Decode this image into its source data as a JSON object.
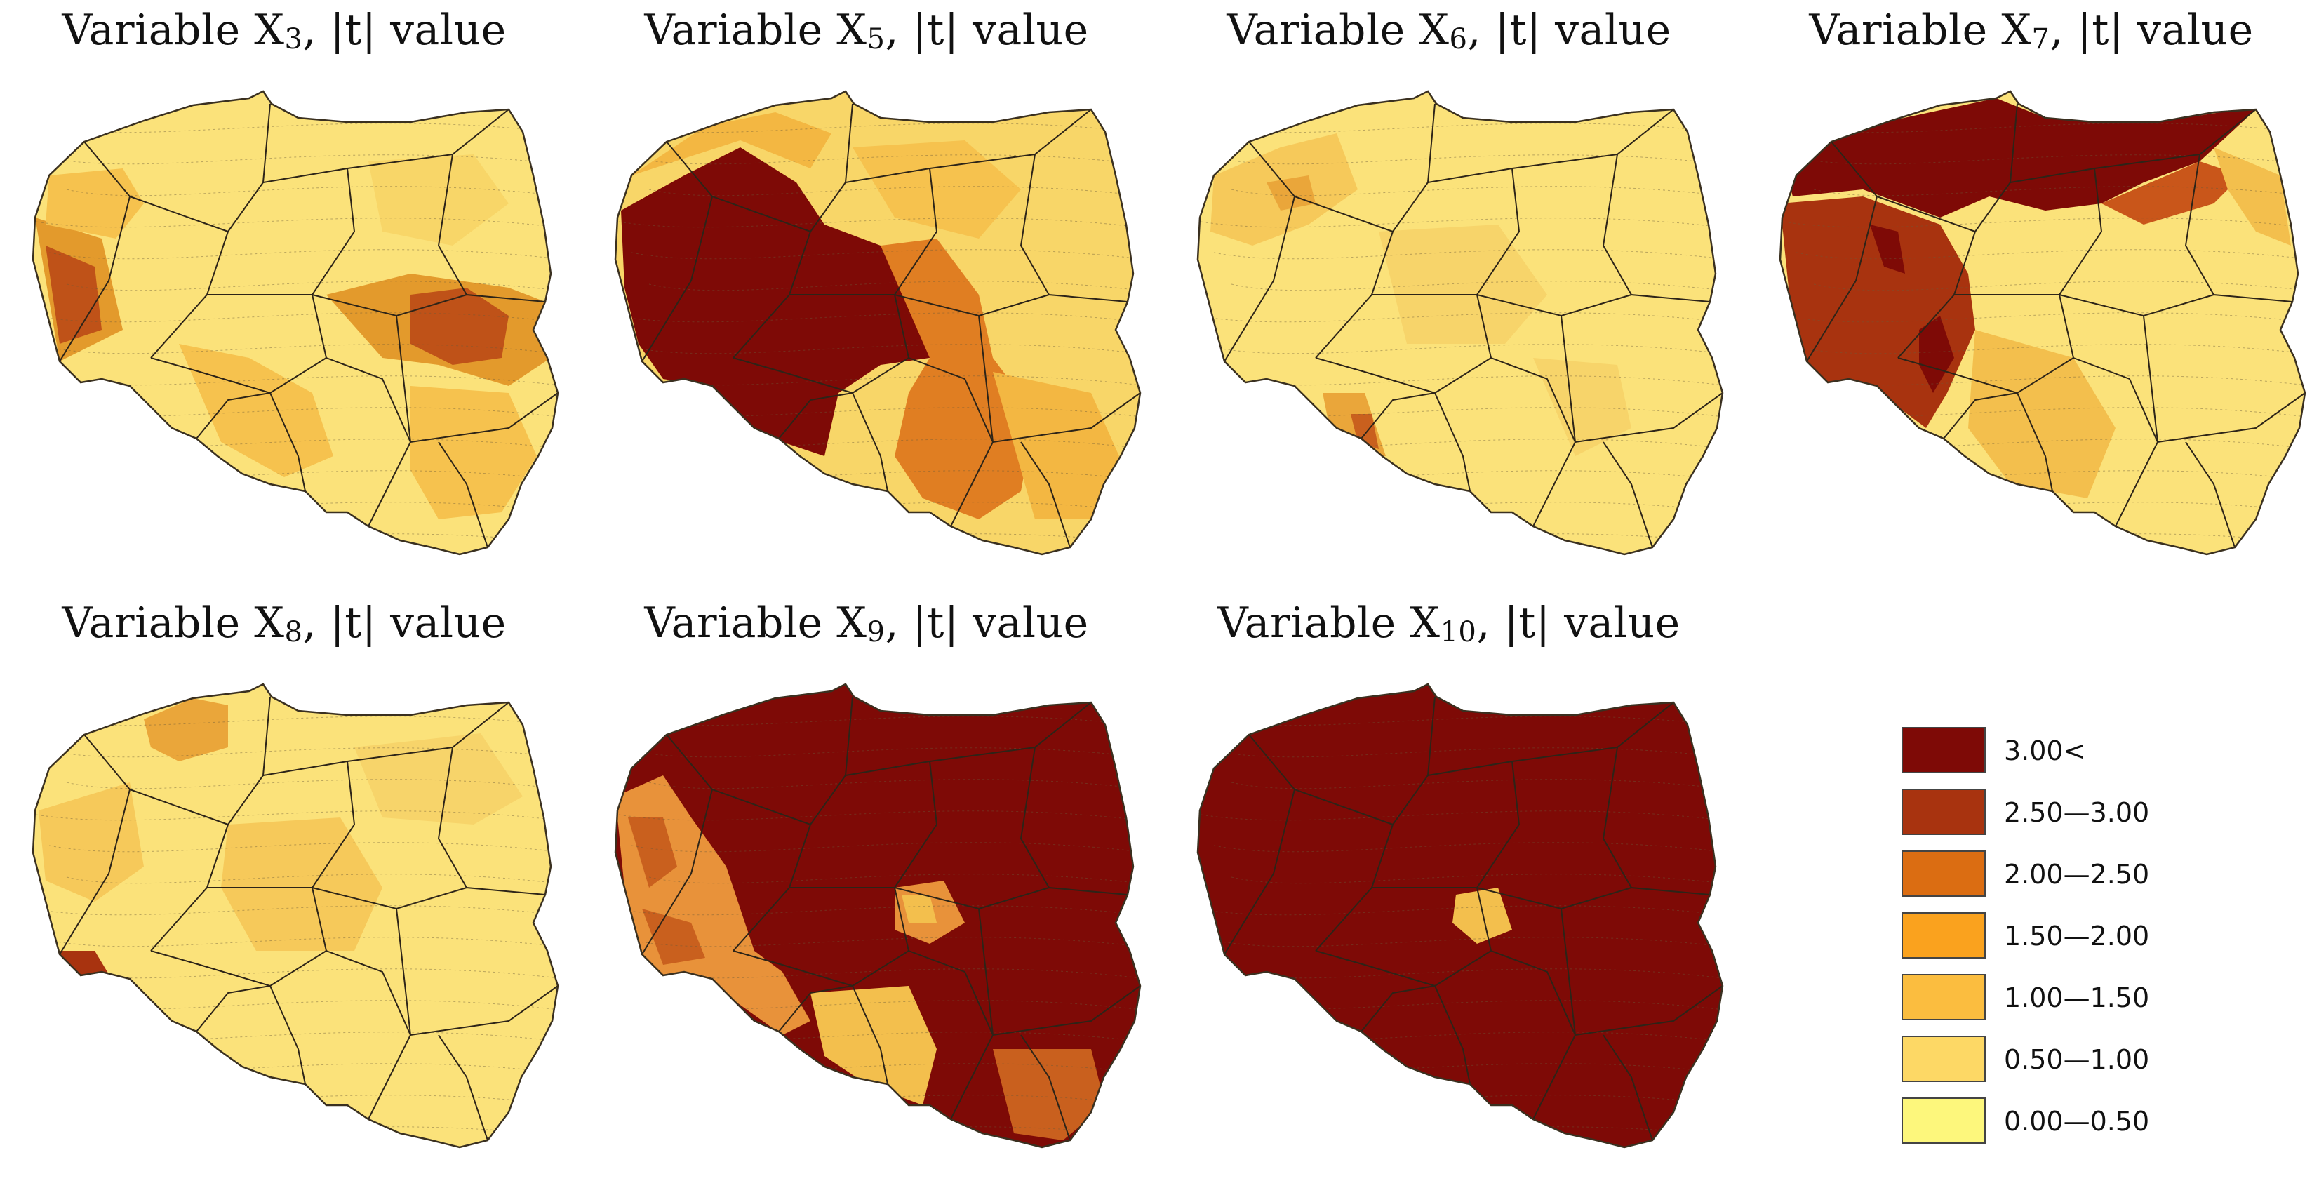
{
  "maps": [
    {
      "id": "x3",
      "prefix": "Variable X",
      "sub": "3",
      "suffix": ", |t| value",
      "colors": {
        "base": "#fbe27a",
        "c1": "#f6c24e",
        "c2": "#e39a2c",
        "c3": "#bf5218",
        "c4": "#f8d668"
      }
    },
    {
      "id": "x5",
      "prefix": "Variable X",
      "sub": "5",
      "suffix": ", |t| value",
      "colors": {
        "base": "#f8d668",
        "c1": "#f3b742",
        "c2": "#e07e22",
        "c3": "#7e0a06",
        "c4": "#f6c24e"
      }
    },
    {
      "id": "x6",
      "prefix": "Variable X",
      "sub": "6",
      "suffix": ", |t| value",
      "colors": {
        "base": "#fbe27a",
        "c1": "#f6c95a",
        "c2": "#eaa63a",
        "c3": "#c9601e",
        "c4": "#f7d46a"
      }
    },
    {
      "id": "x7",
      "prefix": "Variable X",
      "sub": "7",
      "suffix": ", |t| value",
      "colors": {
        "base": "#fbe27a",
        "c1": "#f3bf4d",
        "c2": "#c9561a",
        "c3": "#7e0a06",
        "c4": "#a8330f"
      }
    },
    {
      "id": "x8",
      "prefix": "Variable X",
      "sub": "8",
      "suffix": ", |t| value",
      "colors": {
        "base": "#fbe27a",
        "c1": "#f6c95a",
        "c2": "#eaa63a",
        "c3": "#a8330f",
        "c4": "#f7d46a"
      }
    },
    {
      "id": "x9",
      "prefix": "Variable X",
      "sub": "9",
      "suffix": ", |t| value",
      "colors": {
        "base": "#7e0a06",
        "c1": "#e8923a",
        "c2": "#f3bf4d",
        "c3": "#c9601e",
        "c4": "#7e0a06"
      }
    },
    {
      "id": "x10",
      "prefix": "Variable X",
      "sub": "10",
      "suffix": ", |t| value",
      "colors": {
        "base": "#7e0a06",
        "c1": "#7e0a06",
        "c2": "#f3bf4d",
        "c3": "#7e0a06",
        "c4": "#7e0a06"
      }
    }
  ],
  "legend": [
    {
      "label": "3.00<",
      "color": "#7e0a06"
    },
    {
      "label": "2.50—3.00",
      "color": "#a8330f"
    },
    {
      "label": "2.00—2.50",
      "color": "#db6d12"
    },
    {
      "label": "1.50—2.00",
      "color": "#faa21e"
    },
    {
      "label": "1.00—1.50",
      "color": "#fbbd3f"
    },
    {
      "label": "0.50—1.00",
      "color": "#fdd865"
    },
    {
      "label": "0.00—0.50",
      "color": "#fdf77c"
    }
  ]
}
